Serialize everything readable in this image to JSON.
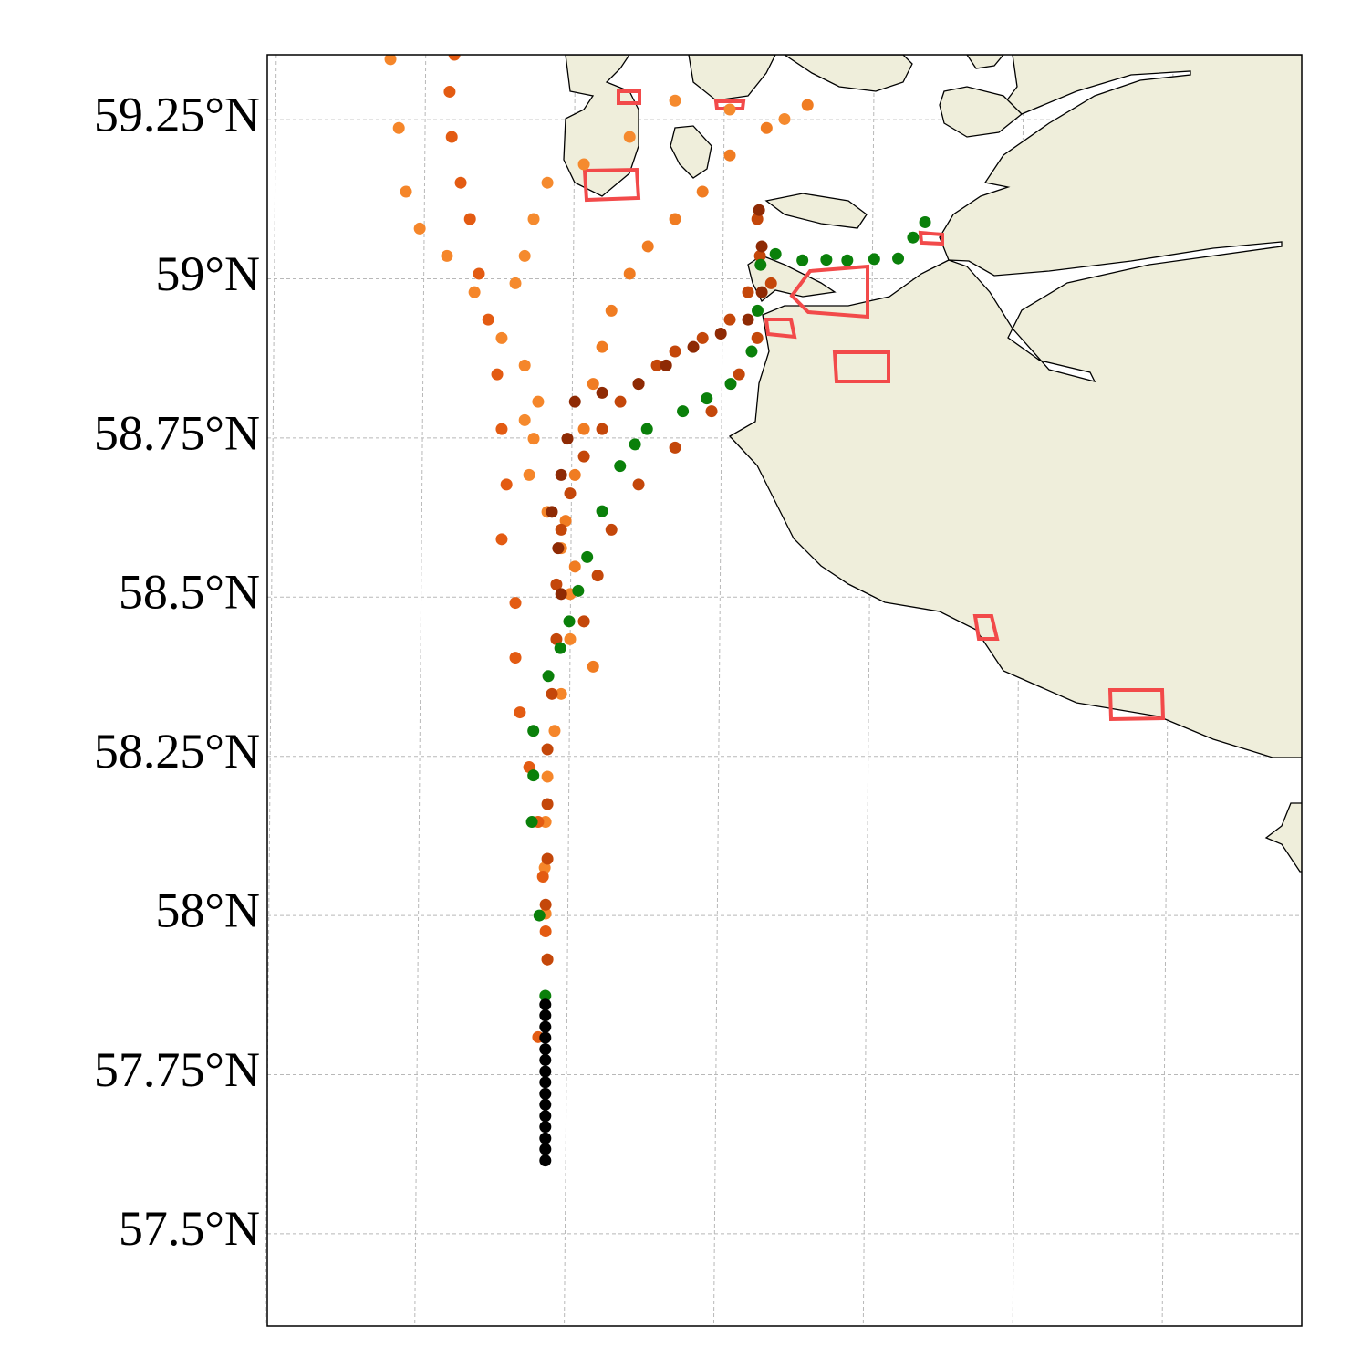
{
  "chart_data": {
    "type": "scatter",
    "ylim": [
      57.355,
      59.352
    ],
    "xlim": [
      -160.03,
      -156.57
    ],
    "yticks": [
      {
        "value": 59.25,
        "label": "59.25°N"
      },
      {
        "value": 59,
        "label": "59°N"
      },
      {
        "value": 58.75,
        "label": "58.75°N"
      },
      {
        "value": 58.5,
        "label": "58.5°N"
      },
      {
        "value": 58.25,
        "label": "58.25°N"
      },
      {
        "value": 58,
        "label": "58°N"
      },
      {
        "value": 57.75,
        "label": "57.75°N"
      },
      {
        "value": 57.5,
        "label": "57.5°N"
      }
    ],
    "xgrid": [
      -160,
      -159.5,
      -159,
      -158.5,
      -158,
      -157.5,
      -157
    ],
    "grid": true,
    "series": [
      {
        "color": "#f5862a",
        "x": [
          -159.618,
          -159.59,
          -159.566,
          -159.52,
          -159.429,
          -159.337,
          -159.246,
          -159.169,
          -159.124,
          -159.139,
          -159.154,
          -159.093,
          -159.047,
          -159.017,
          -159.017,
          -159.047,
          -159.069,
          -159.093,
          -159.099,
          -159.102,
          -159.099,
          -159.093
        ],
        "values": [
          59.345,
          59.237,
          59.137,
          59.079,
          59.036,
          58.979,
          58.907,
          58.864,
          58.807,
          58.749,
          58.692,
          58.634,
          58.577,
          58.505,
          58.434,
          58.348,
          58.29,
          58.218,
          58.147,
          58.075,
          58.003,
          57.931
        ]
      },
      {
        "color": "#f07c22",
        "x": [
          -158.223,
          -158.36,
          -158.483,
          -158.574,
          -158.666,
          -158.757,
          -158.818,
          -158.879,
          -158.91,
          -158.94,
          -158.971,
          -159.001,
          -159.032,
          -159.001,
          -158.971,
          -158.94
        ],
        "values": [
          59.273,
          59.237,
          59.194,
          59.137,
          59.094,
          59.051,
          59.008,
          58.95,
          58.893,
          58.835,
          58.764,
          58.692,
          58.62,
          58.548,
          58.462,
          58.391
        ]
      },
      {
        "color": "#f58a2e",
        "x": [
          -158.3,
          -158.483,
          -158.666,
          -158.818,
          -158.971,
          -159.093,
          -159.139,
          -159.169,
          -159.2,
          -159.169
        ],
        "values": [
          59.251,
          59.266,
          59.28,
          59.223,
          59.18,
          59.151,
          59.094,
          59.036,
          58.993,
          58.778
        ]
      },
      {
        "color": "#e35b12",
        "x": [
          -159.404,
          -159.42,
          -159.413,
          -159.383,
          -159.352,
          -159.322,
          -159.291,
          -159.261,
          -159.246,
          -159.23,
          -159.246,
          -159.2,
          -159.2,
          -159.185,
          -159.154,
          -159.124,
          -159.108,
          -159.099,
          -159.124
        ],
        "values": [
          59.352,
          59.294,
          59.223,
          59.151,
          59.094,
          59.008,
          58.936,
          58.85,
          58.764,
          58.677,
          58.591,
          58.491,
          58.405,
          58.319,
          58.233,
          58.147,
          58.061,
          57.975,
          57.809
        ]
      },
      {
        "color": "#c4470a",
        "x": [
          -158.391,
          -158.382,
          -158.422,
          -158.483,
          -158.574,
          -158.666,
          -158.727,
          -158.788,
          -158.849,
          -158.91,
          -158.971,
          -159.017,
          -159.047,
          -159.063,
          -159.063,
          -159.078,
          -159.093,
          -159.093,
          -159.093,
          -159.099,
          -159.093,
          -158.345,
          -158.391,
          -158.452,
          -158.544,
          -158.666,
          -158.788,
          -158.879,
          -158.925,
          -158.971
        ],
        "values": [
          59.094,
          59.036,
          58.979,
          58.936,
          58.907,
          58.886,
          58.864,
          58.835,
          58.807,
          58.764,
          58.721,
          58.663,
          58.606,
          58.52,
          58.434,
          58.348,
          58.261,
          58.175,
          58.089,
          58.017,
          57.931,
          58.993,
          58.907,
          58.85,
          58.792,
          58.735,
          58.677,
          58.606,
          58.534,
          58.462
        ]
      },
      {
        "color": "#8e2a04",
        "x": [
          -158.385,
          -158.376,
          -158.376,
          -158.422,
          -158.513,
          -158.605,
          -158.696,
          -158.788,
          -158.91,
          -159.001,
          -159.026,
          -159.047,
          -159.078,
          -159.057,
          -159.047
        ],
        "values": [
          59.108,
          59.051,
          58.979,
          58.936,
          58.914,
          58.893,
          58.864,
          58.835,
          58.821,
          58.807,
          58.749,
          58.692,
          58.634,
          58.577,
          58.505
        ]
      },
      {
        "color": "#0a800a",
        "x": [
          -159.1,
          -159.12,
          -159.145,
          -159.14,
          -159.14,
          -159.09,
          -159.05,
          -159.02,
          -158.99,
          -158.96,
          -158.91,
          -158.85,
          -158.8,
          -158.76,
          -158.64,
          -158.56,
          -158.48,
          -158.41,
          -158.39,
          -158.38,
          -158.33,
          -158.24,
          -158.16,
          -158.09,
          -158.0,
          -157.92,
          -157.87,
          -157.83
        ],
        "values": [
          57.874,
          58.0,
          58.147,
          58.22,
          58.29,
          58.376,
          58.42,
          58.462,
          58.51,
          58.563,
          58.635,
          58.706,
          58.74,
          58.764,
          58.792,
          58.812,
          58.835,
          58.886,
          58.95,
          59.022,
          59.039,
          59.029,
          59.03,
          59.029,
          59.031,
          59.032,
          59.065,
          59.089
        ]
      },
      {
        "color": "#000000",
        "x": [
          -159.1,
          -159.1,
          -159.1,
          -159.1,
          -159.1,
          -159.1,
          -159.1,
          -159.1,
          -159.1,
          -159.1,
          -159.1,
          -159.1,
          -159.1,
          -159.1,
          -159.1
        ],
        "values": [
          57.86,
          57.843,
          57.825,
          57.808,
          57.79,
          57.773,
          57.755,
          57.738,
          57.72,
          57.703,
          57.685,
          57.668,
          57.65,
          57.633,
          57.615
        ]
      }
    ]
  }
}
